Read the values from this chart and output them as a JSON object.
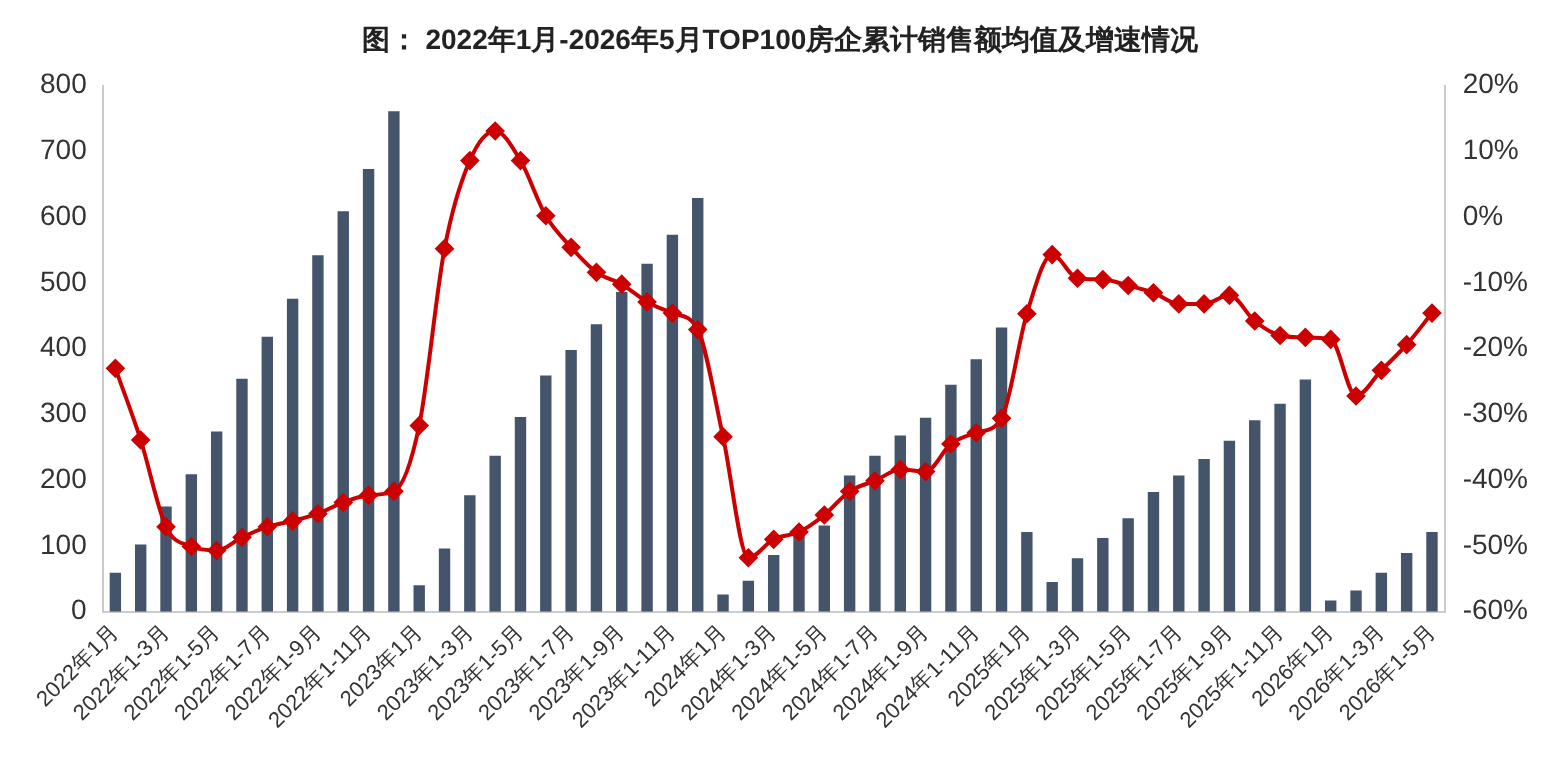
{
  "chart_data": {
    "type": "bar",
    "title": "图： 2022年1月-2026年5月TOP100房企累计销售额均值及增速情况",
    "categories": [
      "2022年1月",
      null,
      "2022年1-3月",
      null,
      "2022年1-5月",
      null,
      "2022年1-7月",
      null,
      "2022年1-9月",
      null,
      "2022年1-11月",
      null,
      "2023年1月",
      null,
      "2023年1-3月",
      null,
      "2023年1-5月",
      null,
      "2023年1-7月",
      null,
      "2023年1-9月",
      null,
      "2023年1-11月",
      null,
      "2024年1月",
      null,
      "2024年1-3月",
      null,
      "2024年1-5月",
      null,
      "2024年1-7月",
      null,
      "2024年1-9月",
      null,
      "2024年1-11月",
      null,
      "2025年1月",
      null,
      "2025年1-3月",
      null,
      "2025年1-5月",
      null,
      "2025年1-7月",
      null,
      "2025年1-9月",
      null,
      "2025年1-11月",
      null,
      "2026年1月",
      null,
      "2026年1-3月",
      null,
      "2026年1-5月"
    ],
    "series": [
      {
        "color": "#44546a",
        "values": [
          59,
          102,
          160,
          209,
          274,
          354,
          418,
          476,
          542,
          609,
          673,
          761,
          40,
          96,
          177,
          237,
          296,
          359,
          398,
          437,
          486,
          529,
          573,
          629,
          26,
          47,
          86,
          115,
          131,
          207,
          237,
          268,
          295,
          345,
          384,
          432,
          121,
          45,
          81,
          112,
          142,
          182,
          207,
          232,
          260,
          291,
          316,
          353,
          17,
          32,
          59,
          89,
          121
        ]
      },
      {
        "type": "line",
        "axis": "y2",
        "color": "#cc0000",
        "marker": "diamond",
        "values": [
          -23.0,
          -33.9,
          -47.1,
          -50.1,
          -50.7,
          -48.7,
          -47.1,
          -46.2,
          -45.1,
          -43.4,
          -42.3,
          -41.7,
          -31.7,
          -4.8,
          8.6,
          13.1,
          8.6,
          0.2,
          -4.6,
          -8.4,
          -10.2,
          -12.9,
          -14.6,
          -17.1,
          -33.4,
          -51.8,
          -49.0,
          -47.9,
          -45.3,
          -41.7,
          -40.1,
          -38.4,
          -38.7,
          -34.5,
          -32.8,
          -30.6,
          -14.7,
          -5.7,
          -9.3,
          -9.5,
          -10.4,
          -11.5,
          -13.2,
          -13.2,
          -11.9,
          -15.8,
          -18.0,
          -18.3,
          -18.6,
          -27.2,
          -23.3,
          -19.4,
          -14.6
        ]
      }
    ],
    "ylim": [
      0,
      800
    ],
    "yticks": [
      0,
      100,
      200,
      300,
      400,
      500,
      600,
      700,
      800
    ],
    "y2lim": [
      -60,
      20
    ],
    "y2ticks": [
      {
        "value": -60,
        "label": "-60%"
      },
      {
        "value": -50,
        "label": "-50%"
      },
      {
        "value": -40,
        "label": "-40%"
      },
      {
        "value": -30,
        "label": "-30%"
      },
      {
        "value": -20,
        "label": "-20%"
      },
      {
        "value": -10,
        "label": "-10%"
      },
      {
        "value": 0,
        "label": "0%"
      },
      {
        "value": 10,
        "label": "10%"
      },
      {
        "value": 20,
        "label": "20%"
      }
    ],
    "grid": false,
    "legend": false
  }
}
